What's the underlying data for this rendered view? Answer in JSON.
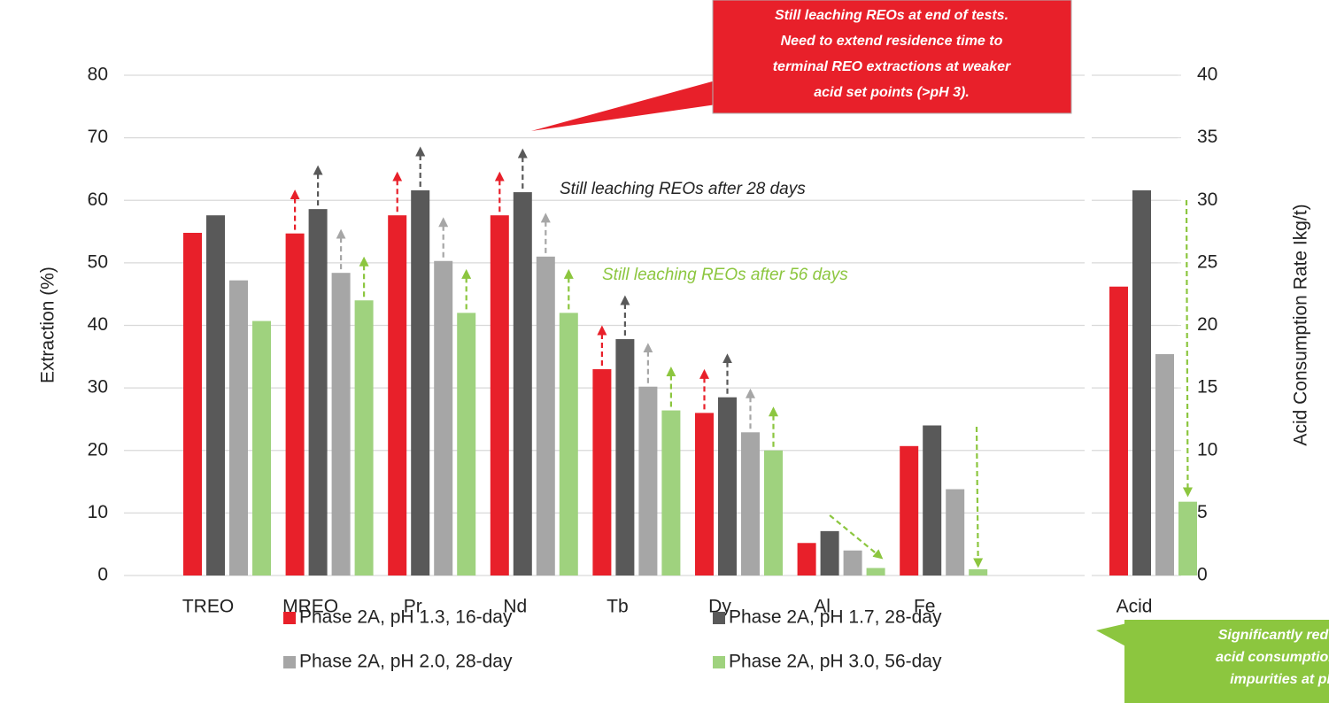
{
  "chart_data": {
    "type": "bar",
    "categories": [
      "TREO",
      "MREO",
      "Pr",
      "Nd",
      "Tb",
      "Dy",
      "Al",
      "Fe",
      "Acid"
    ],
    "series": [
      {
        "name": "Phase 2A, pH 1.3, 16-day",
        "color": "#e8202a",
        "values": [
          54.8,
          54.7,
          57.6,
          57.6,
          33,
          26,
          5.2,
          20.7,
          null
        ],
        "acid_value": 23.1
      },
      {
        "name": "Phase 2A, pH 1.7, 28-day",
        "color": "#595959",
        "values": [
          57.6,
          58.6,
          61.6,
          61.3,
          37.8,
          28.5,
          7.1,
          24,
          null
        ],
        "acid_value": 30.8
      },
      {
        "name": "Phase 2A, pH 2.0, 28-day",
        "color": "#a6a6a6",
        "values": [
          47.2,
          48.4,
          50.3,
          51,
          30.2,
          22.9,
          4,
          13.8,
          null
        ],
        "acid_value": 17.7
      },
      {
        "name": "Phase 2A, pH 3.0, 56-day",
        "color": "#9fd27e",
        "values": [
          40.7,
          44,
          42,
          42,
          26.4,
          20,
          1.2,
          1,
          null
        ],
        "acid_value": 5.9
      }
    ],
    "ylabel": "Extraction (%)",
    "y2label": "Acid Consumption Rate  Ikg/t)",
    "ylim": [
      0,
      80
    ],
    "yticks": [
      0,
      10,
      20,
      30,
      40,
      50,
      60,
      70,
      80
    ],
    "y2lim": [
      0,
      40
    ],
    "y2ticks": [
      0,
      5,
      10,
      15,
      20,
      25,
      30,
      35,
      40
    ],
    "grid": true,
    "annotations": [
      "Still leaching REOs after 28 days",
      "Still leaching REOs after 56 days"
    ],
    "callout_top": [
      "Still leaching REOs at end of tests.",
      "Need to extend residence time to",
      "terminal REO extractions at weaker",
      "acid set points (>pH 3)."
    ],
    "callout_bottom": [
      "Significantly redu",
      "acid consumption",
      "impurities at pH"
    ]
  }
}
